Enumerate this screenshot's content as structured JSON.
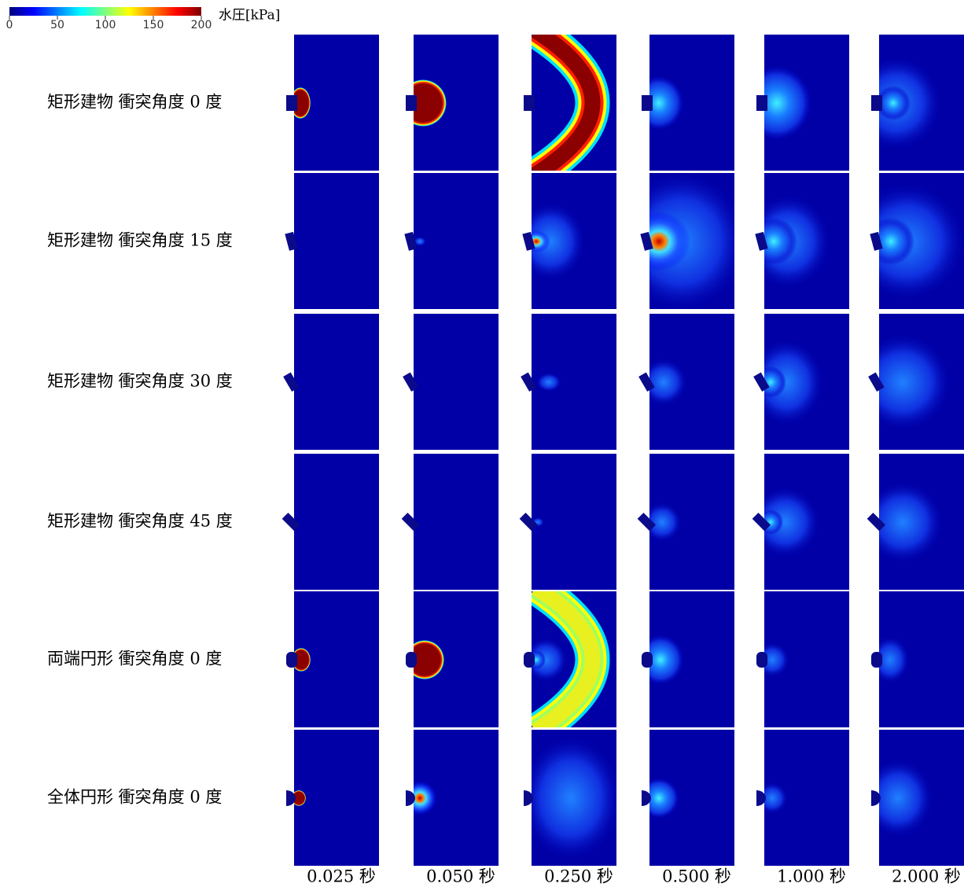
{
  "colorbar": {
    "label": "水圧[kPa]",
    "ticks": [
      0,
      50,
      100,
      150,
      200
    ]
  },
  "rows": [
    "矩形建物 衝突角度 0 度",
    "矩形建物 衝突角度 15 度",
    "矩形建物 衝突角度 30 度",
    "矩形建物 衝突角度 45 度",
    "両端円形 衝突角度 0 度",
    "全体円形 衝突角度 0 度"
  ],
  "columns": [
    "0.025 秒",
    "0.050 秒",
    "0.250 秒",
    "0.500 秒",
    "1.000 秒",
    "2.000 秒"
  ]
}
